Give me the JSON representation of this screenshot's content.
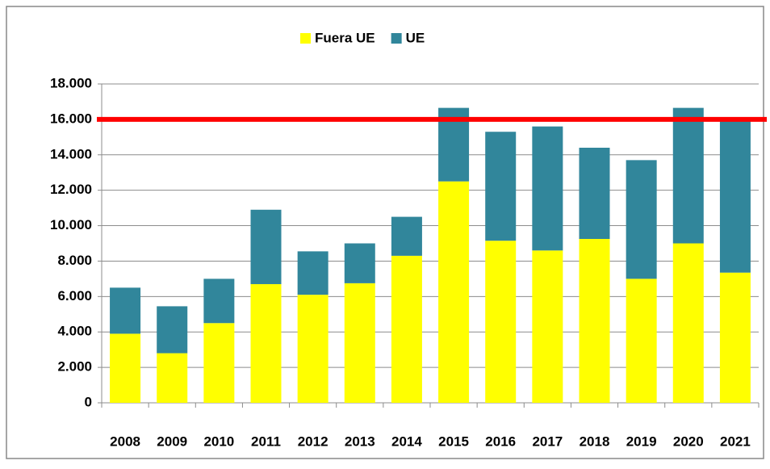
{
  "chart_data": {
    "type": "stacked_bar",
    "categories": [
      "2008",
      "2009",
      "2010",
      "2011",
      "2012",
      "2013",
      "2014",
      "2015",
      "2016",
      "2017",
      "2018",
      "2019",
      "2020",
      "2021"
    ],
    "series": [
      {
        "name": "Fuera UE",
        "color": "#ffff00",
        "values": [
          3900,
          2800,
          4500,
          6700,
          6100,
          6750,
          8300,
          12500,
          9150,
          8600,
          9250,
          7000,
          9000,
          7350
        ]
      },
      {
        "name": "UE",
        "color": "#31869b",
        "values": [
          2600,
          2650,
          2500,
          4200,
          2450,
          2250,
          2200,
          4150,
          6150,
          7000,
          5150,
          6700,
          7650,
          8550
        ]
      }
    ],
    "ylim": [
      0,
      18000
    ],
    "yticks": [
      0,
      {
        "value": 2000,
        "label": "2.000"
      },
      {
        "value": 4000,
        "label": "4.000"
      },
      {
        "value": 6000,
        "label": "6.000"
      },
      {
        "value": 8000,
        "label": "8.000"
      },
      {
        "value": 10000,
        "label": "10.000"
      },
      {
        "value": 12000,
        "label": "12.000"
      },
      {
        "value": 14000,
        "label": "14.000"
      },
      {
        "value": 16000,
        "label": "16.000"
      },
      {
        "value": 18000,
        "label": "18.000"
      }
    ],
    "grid": true,
    "legend": "top",
    "reference_line": {
      "value": 16000,
      "color": "#ff0000"
    }
  }
}
